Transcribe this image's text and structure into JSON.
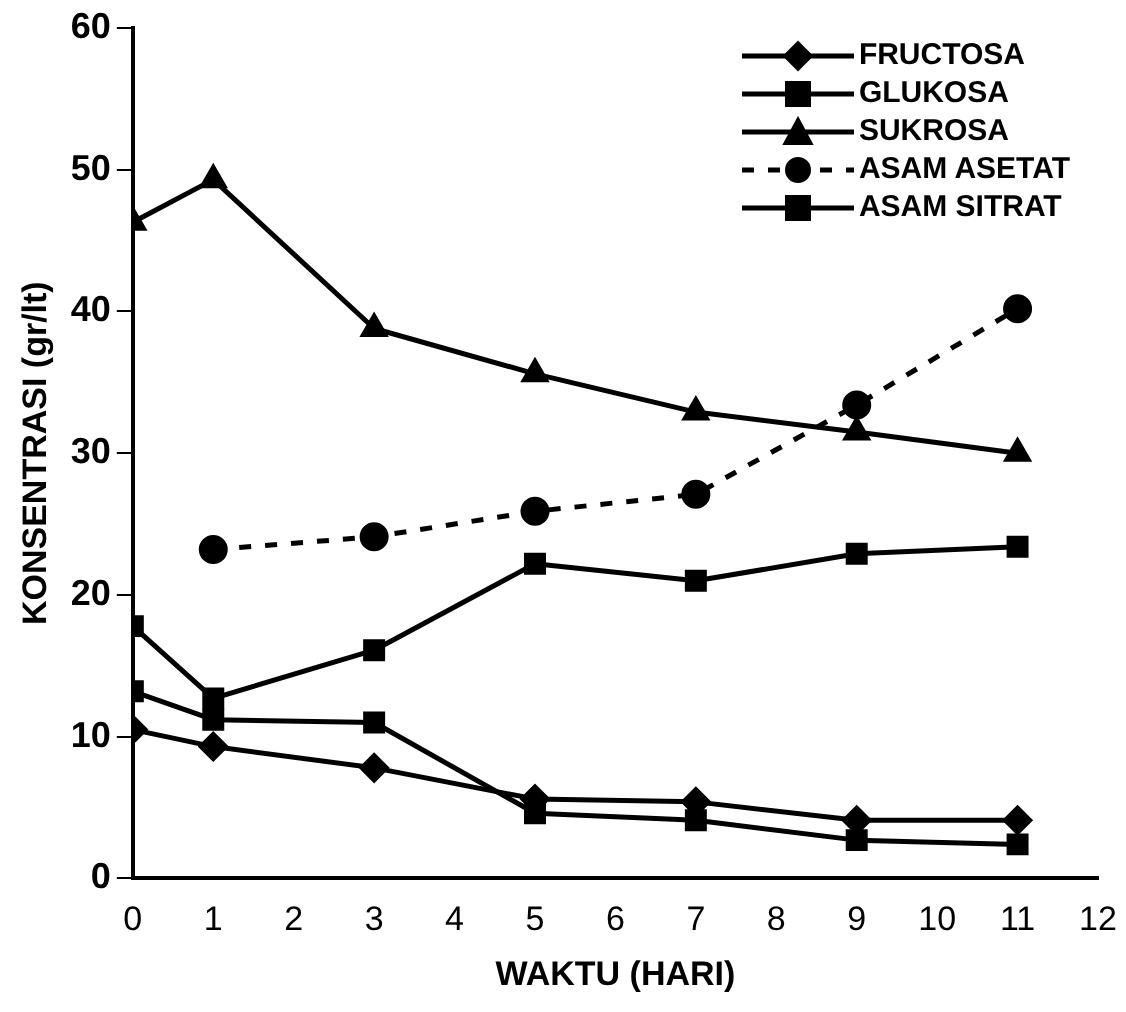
{
  "chart_data": {
    "type": "line",
    "xlabel": "WAKTU (HARI)",
    "ylabel": "KONSENTRASI (gr/lt)",
    "xlim": [
      0,
      12
    ],
    "xticks": [
      0,
      1,
      2,
      3,
      4,
      5,
      6,
      7,
      8,
      9,
      10,
      11,
      12
    ],
    "ylim": [
      0,
      60
    ],
    "yticks": [
      0,
      10,
      20,
      30,
      40,
      50,
      60
    ],
    "grid": false,
    "legend": "top right",
    "series": [
      {
        "name": "FRUCTOSA",
        "color": "#000000",
        "marker": "diamond",
        "line_style": "solid",
        "x": [
          0,
          1,
          3,
          5,
          7,
          9,
          11
        ],
        "values": [
          10.5,
          9.3,
          7.8,
          5.6,
          5.4,
          4.1,
          4.1
        ]
      },
      {
        "name": "GLUKOSA",
        "color": "#000000",
        "marker": "square",
        "line_style": "solid",
        "x": [
          0,
          1,
          3,
          5,
          7,
          9,
          11
        ],
        "values": [
          17.8,
          12.7,
          16.1,
          22.2,
          21.0,
          22.9,
          23.4
        ]
      },
      {
        "name": "SUKROSA",
        "color": "#000000",
        "marker": "triangle",
        "line_style": "solid",
        "x": [
          0,
          1,
          3,
          5,
          7,
          9,
          11
        ],
        "values": [
          46.3,
          49.3,
          38.8,
          35.6,
          32.9,
          31.5,
          30.0
        ]
      },
      {
        "name": "ASAM ASETAT",
        "color": "#000000",
        "marker": "circle",
        "line_style": "dashed",
        "x": [
          1,
          3,
          5,
          7,
          9,
          11
        ],
        "values": [
          23.2,
          24.1,
          25.9,
          27.1,
          33.4,
          40.2
        ]
      },
      {
        "name": "ASAM SITRAT",
        "color": "#000000",
        "marker": "square",
        "line_style": "solid",
        "x": [
          0,
          1,
          3,
          5,
          7,
          9,
          11
        ],
        "values": [
          13.2,
          11.2,
          11.0,
          4.6,
          4.1,
          2.7,
          2.4
        ]
      }
    ]
  }
}
